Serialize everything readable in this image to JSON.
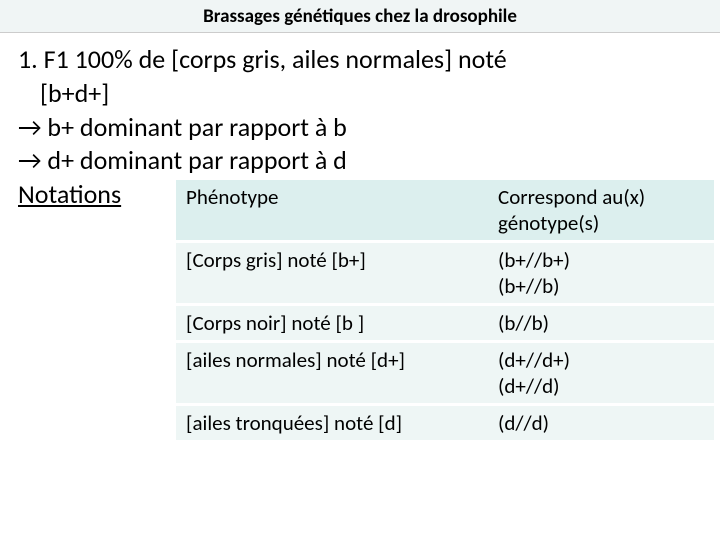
{
  "header": {
    "title": "Brassages génétiques chez la drosophile"
  },
  "body": {
    "line1": "1. F1 100% de [corps gris, ailes normales] noté",
    "line1b": "[b+d+]",
    "line2": "→ b+ dominant par rapport à b",
    "line3": "→ d+ dominant par rapport à d",
    "notations_label": "Notations"
  },
  "table": {
    "columns": [
      {
        "label": "Phénotype"
      },
      {
        "label": "Correspond au(x) génotype(s)"
      }
    ],
    "rows": [
      {
        "pheno": "[Corps gris] noté [b+]",
        "geno": "(b+//b+)\n(b+//b)"
      },
      {
        "pheno": "[Corps noir] noté [b ]",
        "geno": "(b//b)"
      },
      {
        "pheno": "[ailes normales] noté [d+]",
        "geno": "(d+//d+)\n(d+//d)"
      },
      {
        "pheno": "[ailes tronquées] noté [d]",
        "geno": "(d//d)"
      }
    ],
    "header_bg": "#dcefee",
    "row_bg": "#eef6f5",
    "font_size": 21
  },
  "colors": {
    "page_bg": "#ffffff",
    "header_bg": "#f0f5f5",
    "text": "#000000"
  },
  "typography": {
    "header_fontsize": 19,
    "body_fontsize": 26,
    "table_fontsize": 21,
    "font_family": "Calibri, Arial, sans-serif"
  }
}
